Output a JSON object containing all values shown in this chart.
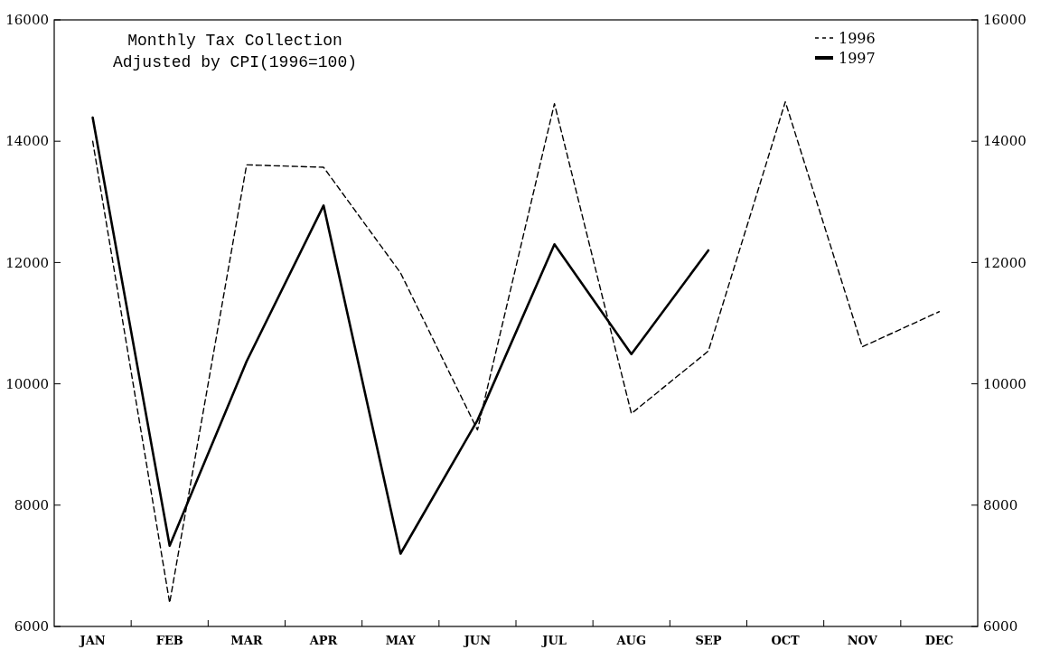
{
  "chart_data": {
    "type": "line",
    "title": "Monthly Tax Collection\nAdjusted by CPI(1996=100)",
    "categories": [
      "JAN",
      "FEB",
      "MAR",
      "APR",
      "MAY",
      "JUN",
      "JUL",
      "AUG",
      "SEP",
      "OCT",
      "NOV",
      "DEC"
    ],
    "series": [
      {
        "name": "1996",
        "color": "#000000",
        "line_style": "dashed",
        "values": [
          14000,
          6390,
          13610,
          13570,
          11830,
          9240,
          14620,
          9510,
          10540,
          14650,
          10610,
          11190
        ]
      },
      {
        "name": "1997",
        "color": "#000000",
        "line_style": "solid",
        "values": [
          14390,
          7330,
          10370,
          12940,
          7200,
          9400,
          12300,
          10490,
          12200,
          null,
          null,
          null
        ]
      }
    ],
    "ylim": [
      6000,
      16000
    ],
    "yticks": [
      6000,
      8000,
      10000,
      12000,
      14000,
      16000
    ],
    "y2lim": [
      6000,
      16000
    ],
    "y2ticks": [
      6000,
      8000,
      10000,
      12000,
      14000,
      16000
    ],
    "grid": false,
    "legend": "top right",
    "marker": "none"
  }
}
